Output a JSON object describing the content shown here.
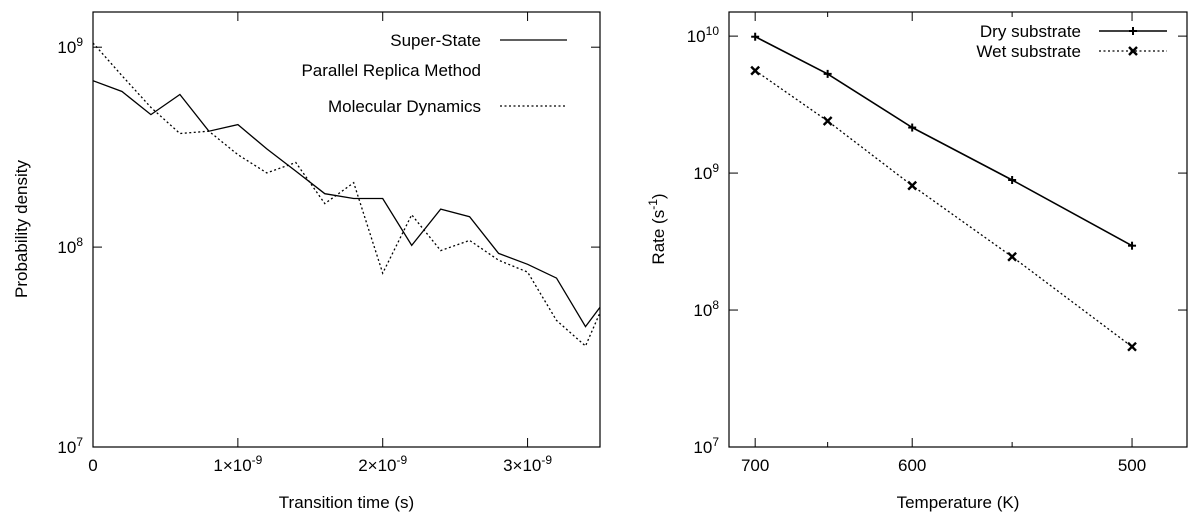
{
  "chart_data": [
    {
      "type": "line",
      "title": "",
      "xlabel": "Transition time (s)",
      "ylabel": "Probability density",
      "x_scale": "linear",
      "y_scale": "log",
      "xlim": [
        0,
        3.5e-09
      ],
      "ylim": [
        10000000.0,
        1500000000.0
      ],
      "x_ticks": [
        {
          "value": 0,
          "label": "0"
        },
        {
          "value": 1e-09,
          "label": "1×10",
          "exp": "-9"
        },
        {
          "value": 2e-09,
          "label": "2×10",
          "exp": "-9"
        },
        {
          "value": 3e-09,
          "label": "3×10",
          "exp": "-9"
        }
      ],
      "y_ticks": [
        {
          "value": 10000000.0,
          "label": "10",
          "exp": "7"
        },
        {
          "value": 100000000.0,
          "label": "10",
          "exp": "8"
        },
        {
          "value": 1000000000.0,
          "label": "10",
          "exp": "9"
        }
      ],
      "grid": false,
      "legend_position": "top-right",
      "series": [
        {
          "name": "Super-State\nParallel Replica Method",
          "legend_lines": [
            "Super-State",
            "Parallel Replica Method"
          ],
          "style": "solid",
          "x": [
            0,
            2e-10,
            4e-10,
            6e-10,
            8e-10,
            1e-09,
            1.2e-09,
            1.4e-09,
            1.6e-09,
            1.8e-09,
            2e-09,
            2.2e-09,
            2.4e-09,
            2.6e-09,
            2.8e-09,
            3e-09,
            3.2e-09,
            3.4e-09,
            3.5e-09
          ],
          "values": [
            680000000.0,
            600000000.0,
            460000000.0,
            580000000.0,
            380000000.0,
            410000000.0,
            310000000.0,
            240000000.0,
            185000000.0,
            175000000.0,
            175000000.0,
            102000000.0,
            155000000.0,
            142000000.0,
            93000000.0,
            82000000.0,
            70000000.0,
            40000000.0,
            50000000.0
          ]
        },
        {
          "name": "Molecular Dynamics",
          "legend_lines": [
            "Molecular Dynamics"
          ],
          "style": "dotted",
          "x": [
            0,
            2e-10,
            4e-10,
            6e-10,
            8e-10,
            1e-09,
            1.2e-09,
            1.4e-09,
            1.6e-09,
            1.8e-09,
            2e-09,
            2.2e-09,
            2.4e-09,
            2.6e-09,
            2.8e-09,
            3e-09,
            3.2e-09,
            3.4e-09,
            3.5e-09
          ],
          "values": [
            1050000000.0,
            720000000.0,
            500000000.0,
            370000000.0,
            380000000.0,
            290000000.0,
            235000000.0,
            265000000.0,
            165000000.0,
            210000000.0,
            74000000.0,
            145000000.0,
            96000000.0,
            108000000.0,
            86000000.0,
            75000000.0,
            43000000.0,
            32000000.0,
            47000000.0
          ]
        }
      ]
    },
    {
      "type": "line",
      "title": "",
      "xlabel": "Temperature (K)",
      "ylabel": "Rate (s",
      "ylabel_sup": "-1",
      "ylabel_end": ")",
      "x_scale": "reciprocal",
      "y_scale": "log",
      "xlim": [
        720,
        480
      ],
      "ylim": [
        10000000.0,
        15000000000.0
      ],
      "x_ticks": [
        {
          "value": 700,
          "label": "700"
        },
        {
          "value": 600,
          "label": "600"
        },
        {
          "value": 500,
          "label": "500"
        }
      ],
      "y_ticks": [
        {
          "value": 10000000.0,
          "label": "10",
          "exp": "7"
        },
        {
          "value": 100000000.0,
          "label": "10",
          "exp": "8"
        },
        {
          "value": 1000000000.0,
          "label": "10",
          "exp": "9"
        },
        {
          "value": 10000000000.0,
          "label": "10",
          "exp": "10"
        }
      ],
      "grid": false,
      "legend_position": "top-right",
      "series": [
        {
          "name": "Dry substrate",
          "legend_lines": [
            "Dry substrate"
          ],
          "style": "solid",
          "marker": "plus",
          "x": [
            700,
            650,
            600,
            550,
            500
          ],
          "values": [
            9900000000.0,
            5300000000.0,
            2150000000.0,
            890000000.0,
            295000000.0
          ]
        },
        {
          "name": "Wet substrate",
          "legend_lines": [
            "Wet substrate"
          ],
          "style": "dotted",
          "marker": "cross",
          "x": [
            700,
            650,
            600,
            550,
            500
          ],
          "values": [
            5600000000.0,
            2400000000.0,
            810000000.0,
            245000000.0,
            54000000.0
          ]
        }
      ]
    }
  ]
}
